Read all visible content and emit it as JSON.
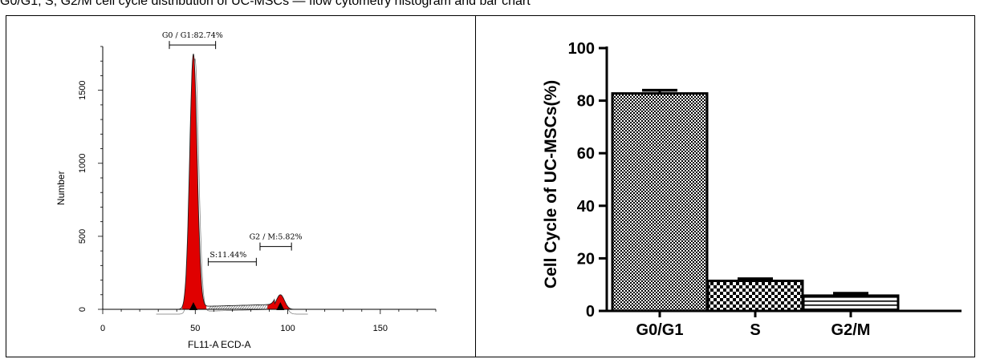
{
  "caption": {
    "text": "G0/G1, S, G2/M cell cycle distribution of UC-MSCs — flow cytometry histogram and bar chart"
  },
  "chart_data": [
    {
      "type": "area",
      "xlabel": "FL11-A ECD-A",
      "ylabel": "Number",
      "xlim": [
        0,
        180
      ],
      "ylim": [
        0,
        1800
      ],
      "x_ticks": [
        "0",
        "50",
        "100",
        "150"
      ],
      "y_ticks": [
        "0",
        "500",
        "1000",
        "1500"
      ],
      "gates": [
        {
          "label": "G0 / G1:82.74%",
          "x_range": [
            36,
            61
          ]
        },
        {
          "label": "S:11.44%",
          "x_range": [
            57,
            83
          ]
        },
        {
          "label": "G2 / M:5.82%",
          "x_range": [
            85,
            102
          ]
        }
      ],
      "peaks": [
        {
          "x": 49,
          "y": 1750
        },
        {
          "x": 96,
          "y": 100
        }
      ],
      "fill_color": "#e00000"
    },
    {
      "type": "bar",
      "categories": [
        "G0/G1",
        "S",
        "G2/M"
      ],
      "values": [
        82.74,
        11.44,
        5.82
      ],
      "errors": [
        1.2,
        0.8,
        0.9
      ],
      "ylabel": "Cell Cycle of UC-MSCs(%)",
      "xlabel": "",
      "ylim": [
        0,
        100
      ],
      "y_ticks": [
        "0",
        "20",
        "40",
        "60",
        "80",
        "100"
      ],
      "grid": false
    }
  ]
}
